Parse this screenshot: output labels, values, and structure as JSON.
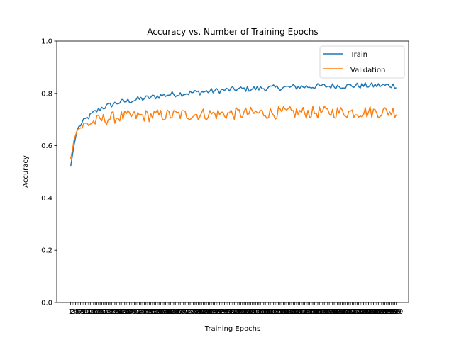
{
  "chart_data": {
    "type": "line",
    "title": "Accuracy vs. Number of Training Epochs",
    "xlabel": "Training Epochs",
    "ylabel": "Accuracy",
    "ylim": [
      0,
      1
    ],
    "xlim": [
      -7.5,
      207.5
    ],
    "yticks": [
      "0.0",
      "0.2",
      "0.4",
      "0.6",
      "0.8",
      "1.0"
    ],
    "x_first_tick_label": "1",
    "x_last_tick_label": "200",
    "epochs": 200,
    "legend_position": "top-right",
    "grid": false,
    "series": [
      {
        "name": "Train",
        "color": "#1f77b4",
        "keypoints": [
          [
            1,
            0.52
          ],
          [
            2,
            0.56
          ],
          [
            3,
            0.6
          ],
          [
            4,
            0.63
          ],
          [
            5,
            0.66
          ],
          [
            7,
            0.68
          ],
          [
            10,
            0.7
          ],
          [
            15,
            0.725
          ],
          [
            20,
            0.745
          ],
          [
            30,
            0.765
          ],
          [
            40,
            0.775
          ],
          [
            50,
            0.785
          ],
          [
            60,
            0.795
          ],
          [
            70,
            0.8
          ],
          [
            80,
            0.805
          ],
          [
            90,
            0.81
          ],
          [
            100,
            0.815
          ],
          [
            120,
            0.82
          ],
          [
            140,
            0.825
          ],
          [
            160,
            0.828
          ],
          [
            180,
            0.83
          ],
          [
            200,
            0.83
          ]
        ],
        "noise": 0.007
      },
      {
        "name": "Validation",
        "color": "#ff7f0e",
        "keypoints": [
          [
            1,
            0.55
          ],
          [
            2,
            0.58
          ],
          [
            3,
            0.62
          ],
          [
            4,
            0.64
          ],
          [
            5,
            0.66
          ],
          [
            7,
            0.67
          ],
          [
            10,
            0.68
          ],
          [
            15,
            0.69
          ],
          [
            20,
            0.7
          ],
          [
            30,
            0.71
          ],
          [
            50,
            0.715
          ],
          [
            80,
            0.72
          ],
          [
            120,
            0.725
          ],
          [
            160,
            0.728
          ],
          [
            200,
            0.73
          ]
        ],
        "noise": 0.015
      }
    ]
  }
}
